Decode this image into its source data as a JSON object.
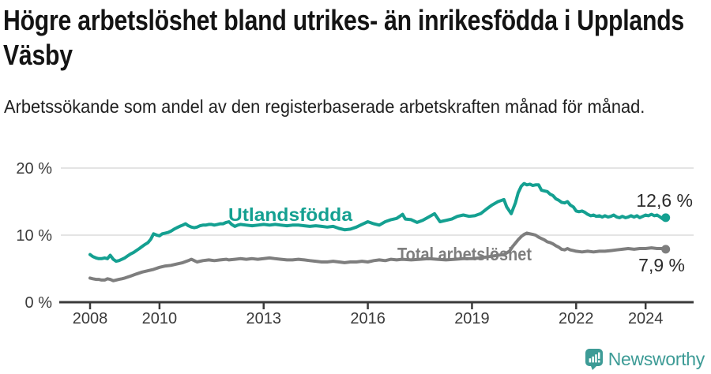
{
  "header": {
    "title": "Högre arbetslöshet bland utrikes- än inrikesfödda i Upplands Väsby",
    "subtitle": "Arbetssökande som andel av den registerbaserade arbetskraften månad för månad."
  },
  "chart_data": {
    "type": "line",
    "title": "Högre arbetslöshet bland utrikes- än inrikesfödda i Upplands Väsby",
    "subtitle": "Arbetssökande som andel av den registerbaserade arbetskraften månad för månad.",
    "unit": "%",
    "grid": "horizontal",
    "legend_position": "inline-labels",
    "x_axis": {
      "tick_values": [
        2008,
        2010,
        2013,
        2016,
        2019,
        2022,
        2024
      ],
      "tick_labels": [
        "2008",
        "2010",
        "2013",
        "2016",
        "2019",
        "2022",
        "2024"
      ],
      "range": [
        2008,
        2024.58
      ]
    },
    "y_axis": {
      "tick_values": [
        0,
        10,
        20
      ],
      "tick_labels": [
        "0 %",
        "10 %",
        "20 %"
      ],
      "range": [
        0,
        20
      ]
    },
    "series": [
      {
        "name": "Utlandsfödda",
        "color": "#14a091",
        "end_label": "12,6 %",
        "end_value": 12.6,
        "points": [
          [
            2008.0,
            7.1
          ],
          [
            2008.08,
            6.8
          ],
          [
            2008.17,
            6.6
          ],
          [
            2008.25,
            6.5
          ],
          [
            2008.33,
            6.5
          ],
          [
            2008.42,
            6.6
          ],
          [
            2008.5,
            6.5
          ],
          [
            2008.58,
            7.0
          ],
          [
            2008.67,
            6.4
          ],
          [
            2008.75,
            6.1
          ],
          [
            2008.83,
            6.2
          ],
          [
            2008.92,
            6.4
          ],
          [
            2009.0,
            6.6
          ],
          [
            2009.08,
            6.9
          ],
          [
            2009.17,
            7.2
          ],
          [
            2009.25,
            7.4
          ],
          [
            2009.33,
            7.7
          ],
          [
            2009.42,
            8.0
          ],
          [
            2009.5,
            8.3
          ],
          [
            2009.58,
            8.6
          ],
          [
            2009.67,
            8.9
          ],
          [
            2009.75,
            9.4
          ],
          [
            2009.83,
            10.2
          ],
          [
            2009.92,
            10.0
          ],
          [
            2010.0,
            9.9
          ],
          [
            2010.08,
            10.2
          ],
          [
            2010.17,
            10.3
          ],
          [
            2010.25,
            10.4
          ],
          [
            2010.33,
            10.6
          ],
          [
            2010.42,
            10.9
          ],
          [
            2010.5,
            11.1
          ],
          [
            2010.58,
            11.3
          ],
          [
            2010.67,
            11.5
          ],
          [
            2010.75,
            11.7
          ],
          [
            2010.83,
            11.4
          ],
          [
            2010.92,
            11.2
          ],
          [
            2011.0,
            11.1
          ],
          [
            2011.08,
            11.2
          ],
          [
            2011.17,
            11.4
          ],
          [
            2011.25,
            11.5
          ],
          [
            2011.33,
            11.5
          ],
          [
            2011.42,
            11.6
          ],
          [
            2011.5,
            11.6
          ],
          [
            2011.58,
            11.5
          ],
          [
            2011.67,
            11.6
          ],
          [
            2011.75,
            11.7
          ],
          [
            2011.83,
            11.7
          ],
          [
            2011.92,
            11.9
          ],
          [
            2012.0,
            12.0
          ],
          [
            2012.08,
            11.6
          ],
          [
            2012.17,
            11.3
          ],
          [
            2012.25,
            11.5
          ],
          [
            2012.33,
            11.6
          ],
          [
            2012.5,
            11.5
          ],
          [
            2012.67,
            11.4
          ],
          [
            2012.83,
            11.5
          ],
          [
            2013.0,
            11.6
          ],
          [
            2013.17,
            11.5
          ],
          [
            2013.33,
            11.6
          ],
          [
            2013.5,
            11.5
          ],
          [
            2013.67,
            11.4
          ],
          [
            2013.83,
            11.5
          ],
          [
            2014.0,
            11.5
          ],
          [
            2014.17,
            11.4
          ],
          [
            2014.33,
            11.3
          ],
          [
            2014.5,
            11.4
          ],
          [
            2014.67,
            11.3
          ],
          [
            2014.83,
            11.2
          ],
          [
            2015.0,
            11.3
          ],
          [
            2015.17,
            11.0
          ],
          [
            2015.33,
            10.8
          ],
          [
            2015.5,
            10.9
          ],
          [
            2015.67,
            11.2
          ],
          [
            2015.83,
            11.6
          ],
          [
            2016.0,
            12.0
          ],
          [
            2016.17,
            11.7
          ],
          [
            2016.33,
            11.5
          ],
          [
            2016.5,
            12.0
          ],
          [
            2016.67,
            12.3
          ],
          [
            2016.83,
            12.5
          ],
          [
            2016.92,
            12.8
          ],
          [
            2017.0,
            13.1
          ],
          [
            2017.08,
            12.4
          ],
          [
            2017.25,
            12.3
          ],
          [
            2017.42,
            11.9
          ],
          [
            2017.58,
            12.2
          ],
          [
            2017.75,
            12.7
          ],
          [
            2017.92,
            13.2
          ],
          [
            2018.08,
            12.0
          ],
          [
            2018.25,
            12.2
          ],
          [
            2018.42,
            12.4
          ],
          [
            2018.58,
            12.8
          ],
          [
            2018.75,
            13.0
          ],
          [
            2018.92,
            12.8
          ],
          [
            2019.08,
            12.9
          ],
          [
            2019.25,
            13.2
          ],
          [
            2019.42,
            13.9
          ],
          [
            2019.58,
            14.5
          ],
          [
            2019.75,
            15.0
          ],
          [
            2019.92,
            15.3
          ],
          [
            2020.0,
            14.2
          ],
          [
            2020.13,
            13.2
          ],
          [
            2020.25,
            14.8
          ],
          [
            2020.33,
            16.3
          ],
          [
            2020.42,
            17.3
          ],
          [
            2020.5,
            17.7
          ],
          [
            2020.58,
            17.5
          ],
          [
            2020.67,
            17.6
          ],
          [
            2020.75,
            17.4
          ],
          [
            2020.83,
            17.5
          ],
          [
            2020.92,
            17.5
          ],
          [
            2021.0,
            16.7
          ],
          [
            2021.08,
            16.6
          ],
          [
            2021.17,
            16.5
          ],
          [
            2021.25,
            16.1
          ],
          [
            2021.33,
            15.9
          ],
          [
            2021.42,
            15.4
          ],
          [
            2021.5,
            15.2
          ],
          [
            2021.58,
            14.9
          ],
          [
            2021.67,
            14.8
          ],
          [
            2021.75,
            15.0
          ],
          [
            2021.83,
            14.5
          ],
          [
            2021.92,
            14.2
          ],
          [
            2022.0,
            13.6
          ],
          [
            2022.08,
            13.5
          ],
          [
            2022.17,
            13.6
          ],
          [
            2022.25,
            13.4
          ],
          [
            2022.33,
            13.1
          ],
          [
            2022.42,
            12.9
          ],
          [
            2022.5,
            13.0
          ],
          [
            2022.58,
            12.8
          ],
          [
            2022.67,
            12.9
          ],
          [
            2022.75,
            12.7
          ],
          [
            2022.83,
            12.9
          ],
          [
            2022.92,
            12.7
          ],
          [
            2023.0,
            12.8
          ],
          [
            2023.08,
            13.0
          ],
          [
            2023.17,
            12.7
          ],
          [
            2023.25,
            12.6
          ],
          [
            2023.33,
            12.8
          ],
          [
            2023.42,
            12.6
          ],
          [
            2023.5,
            12.7
          ],
          [
            2023.58,
            12.9
          ],
          [
            2023.67,
            12.7
          ],
          [
            2023.75,
            12.9
          ],
          [
            2023.83,
            12.6
          ],
          [
            2023.92,
            12.8
          ],
          [
            2024.0,
            13.0
          ],
          [
            2024.08,
            12.9
          ],
          [
            2024.17,
            13.1
          ],
          [
            2024.25,
            12.9
          ],
          [
            2024.33,
            13.0
          ],
          [
            2024.42,
            12.7
          ],
          [
            2024.5,
            12.4
          ],
          [
            2024.58,
            12.6
          ]
        ]
      },
      {
        "name": "Total arbetslöshet",
        "color": "#7e7e7e",
        "end_label": "7,9 %",
        "end_value": 7.9,
        "points": [
          [
            2008.0,
            3.6
          ],
          [
            2008.08,
            3.5
          ],
          [
            2008.17,
            3.4
          ],
          [
            2008.25,
            3.4
          ],
          [
            2008.33,
            3.3
          ],
          [
            2008.42,
            3.3
          ],
          [
            2008.5,
            3.5
          ],
          [
            2008.58,
            3.4
          ],
          [
            2008.67,
            3.2
          ],
          [
            2008.75,
            3.3
          ],
          [
            2008.83,
            3.4
          ],
          [
            2008.92,
            3.5
          ],
          [
            2009.0,
            3.6
          ],
          [
            2009.17,
            3.9
          ],
          [
            2009.33,
            4.2
          ],
          [
            2009.5,
            4.5
          ],
          [
            2009.67,
            4.7
          ],
          [
            2009.83,
            4.9
          ],
          [
            2010.0,
            5.2
          ],
          [
            2010.17,
            5.4
          ],
          [
            2010.33,
            5.5
          ],
          [
            2010.5,
            5.7
          ],
          [
            2010.67,
            5.9
          ],
          [
            2010.83,
            6.2
          ],
          [
            2010.92,
            6.4
          ],
          [
            2011.0,
            6.2
          ],
          [
            2011.08,
            6.0
          ],
          [
            2011.25,
            6.2
          ],
          [
            2011.42,
            6.3
          ],
          [
            2011.58,
            6.2
          ],
          [
            2011.75,
            6.3
          ],
          [
            2011.92,
            6.4
          ],
          [
            2012.0,
            6.3
          ],
          [
            2012.17,
            6.4
          ],
          [
            2012.33,
            6.5
          ],
          [
            2012.5,
            6.4
          ],
          [
            2012.67,
            6.5
          ],
          [
            2012.83,
            6.4
          ],
          [
            2013.0,
            6.5
          ],
          [
            2013.17,
            6.6
          ],
          [
            2013.33,
            6.5
          ],
          [
            2013.5,
            6.4
          ],
          [
            2013.67,
            6.3
          ],
          [
            2013.83,
            6.3
          ],
          [
            2014.0,
            6.4
          ],
          [
            2014.17,
            6.3
          ],
          [
            2014.33,
            6.2
          ],
          [
            2014.5,
            6.1
          ],
          [
            2014.67,
            6.0
          ],
          [
            2014.83,
            6.0
          ],
          [
            2015.0,
            6.1
          ],
          [
            2015.17,
            6.0
          ],
          [
            2015.33,
            5.9
          ],
          [
            2015.5,
            6.0
          ],
          [
            2015.67,
            6.0
          ],
          [
            2015.83,
            6.1
          ],
          [
            2016.0,
            6.0
          ],
          [
            2016.17,
            6.2
          ],
          [
            2016.33,
            6.3
          ],
          [
            2016.5,
            6.2
          ],
          [
            2016.67,
            6.4
          ],
          [
            2016.83,
            6.3
          ],
          [
            2017.0,
            6.4
          ],
          [
            2017.25,
            6.3
          ],
          [
            2017.5,
            6.4
          ],
          [
            2017.75,
            6.5
          ],
          [
            2018.0,
            6.4
          ],
          [
            2018.25,
            6.3
          ],
          [
            2018.5,
            6.4
          ],
          [
            2018.75,
            6.5
          ],
          [
            2019.0,
            6.5
          ],
          [
            2019.25,
            6.6
          ],
          [
            2019.5,
            6.8
          ],
          [
            2019.75,
            7.0
          ],
          [
            2019.92,
            7.1
          ],
          [
            2020.08,
            7.6
          ],
          [
            2020.17,
            8.3
          ],
          [
            2020.25,
            8.8
          ],
          [
            2020.33,
            9.3
          ],
          [
            2020.42,
            9.8
          ],
          [
            2020.5,
            10.1
          ],
          [
            2020.58,
            10.3
          ],
          [
            2020.67,
            10.2
          ],
          [
            2020.75,
            10.1
          ],
          [
            2020.83,
            10.0
          ],
          [
            2020.92,
            9.7
          ],
          [
            2021.0,
            9.5
          ],
          [
            2021.08,
            9.3
          ],
          [
            2021.17,
            9.0
          ],
          [
            2021.25,
            8.9
          ],
          [
            2021.33,
            8.7
          ],
          [
            2021.42,
            8.4
          ],
          [
            2021.5,
            8.2
          ],
          [
            2021.58,
            7.9
          ],
          [
            2021.67,
            7.8
          ],
          [
            2021.75,
            8.0
          ],
          [
            2021.83,
            7.8
          ],
          [
            2021.92,
            7.7
          ],
          [
            2022.0,
            7.6
          ],
          [
            2022.17,
            7.5
          ],
          [
            2022.33,
            7.6
          ],
          [
            2022.5,
            7.5
          ],
          [
            2022.67,
            7.6
          ],
          [
            2022.83,
            7.6
          ],
          [
            2023.0,
            7.7
          ],
          [
            2023.17,
            7.8
          ],
          [
            2023.33,
            7.9
          ],
          [
            2023.5,
            8.0
          ],
          [
            2023.67,
            7.9
          ],
          [
            2023.83,
            8.0
          ],
          [
            2024.0,
            8.0
          ],
          [
            2024.17,
            8.1
          ],
          [
            2024.33,
            8.0
          ],
          [
            2024.5,
            8.0
          ],
          [
            2024.58,
            7.9
          ]
        ]
      }
    ]
  },
  "branding": {
    "name": "Newsworthy",
    "color": "#3d9b96",
    "icon": "bar-chart-bubble-icon"
  }
}
